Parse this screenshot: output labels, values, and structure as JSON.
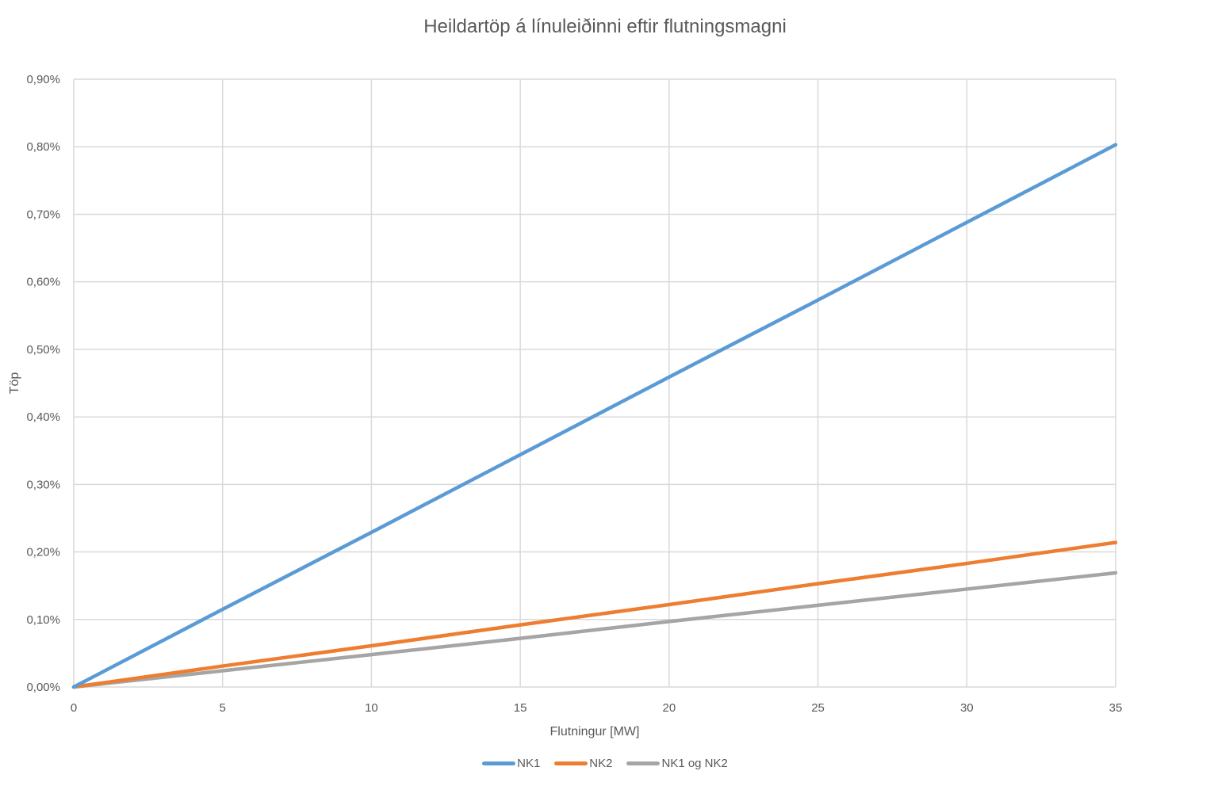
{
  "chart_data": {
    "type": "line",
    "title": "Heildartöp á línuleiðinni eftir flutningsmagni",
    "xlabel": "Flutningur [MW]",
    "ylabel": "Töp",
    "x": [
      0,
      5,
      10,
      15,
      20,
      25,
      30,
      35
    ],
    "xlim": [
      0,
      35
    ],
    "ylim": [
      0,
      0.009
    ],
    "x_ticks": [
      "0",
      "5",
      "10",
      "15",
      "20",
      "25",
      "30",
      "35"
    ],
    "y_ticks": [
      "0,00%",
      "0,10%",
      "0,20%",
      "0,30%",
      "0,40%",
      "0,50%",
      "0,60%",
      "0,70%",
      "0,80%",
      "0,90%"
    ],
    "grid": true,
    "legend_position": "bottom",
    "series": [
      {
        "name": "NK1",
        "color": "#5B9BD5",
        "values": [
          0,
          0.00115,
          0.00229,
          0.00344,
          0.00459,
          0.00573,
          0.00688,
          0.00803
        ]
      },
      {
        "name": "NK2",
        "color": "#ED7D31",
        "values": [
          0,
          0.00031,
          0.00061,
          0.00092,
          0.00122,
          0.00153,
          0.00183,
          0.00214
        ]
      },
      {
        "name": "NK1 og NK2",
        "color": "#A5A5A5",
        "values": [
          0,
          0.00024,
          0.00048,
          0.00072,
          0.00097,
          0.00121,
          0.00145,
          0.00169
        ]
      }
    ]
  }
}
